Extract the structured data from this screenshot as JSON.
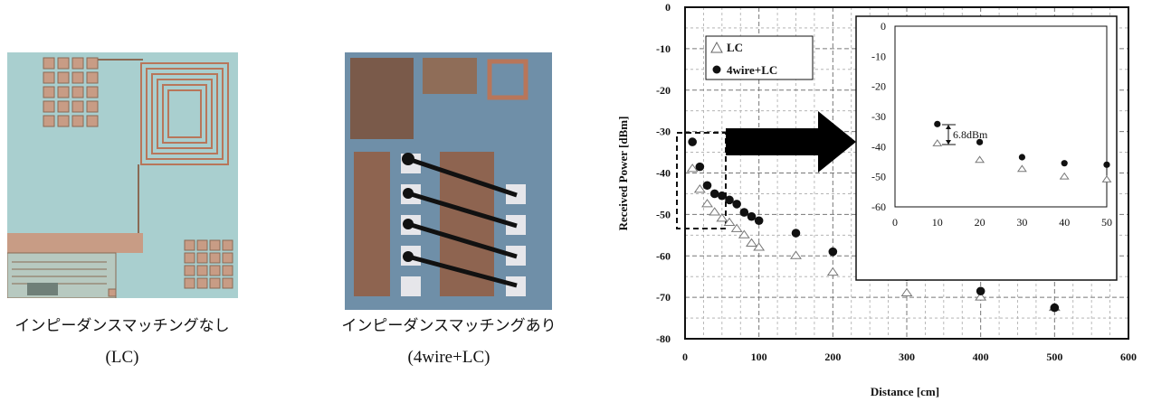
{
  "left_panel": {
    "photo_lc": {
      "caption": "インピーダンスマッチングなし",
      "sub": "(LC)"
    },
    "photo_4wire": {
      "caption": "インピーダンスマッチングあり",
      "sub": "(4wire+LC)"
    }
  },
  "chart_data": [
    {
      "type": "scatter",
      "title": "",
      "xlabel": "Distance [cm]",
      "ylabel": "Received Power [dBm]",
      "xlim": [
        0,
        600
      ],
      "ylim": [
        -80,
        0
      ],
      "xticks": [
        0,
        100,
        200,
        300,
        400,
        500,
        600
      ],
      "yticks": [
        0,
        -10,
        -20,
        -30,
        -40,
        -50,
        -60,
        -70,
        -80
      ],
      "grid": true,
      "legend": "top-left",
      "series": [
        {
          "name": "LC",
          "marker": "open-triangle",
          "x": [
            10,
            20,
            30,
            40,
            50,
            60,
            70,
            80,
            90,
            100,
            150,
            200,
            300,
            400,
            500
          ],
          "y": [
            -39,
            -44,
            -47.5,
            -49.5,
            -51,
            -52,
            -53.5,
            -55,
            -57,
            -58,
            -60,
            -64,
            -69,
            -70,
            -72.5
          ]
        },
        {
          "name": "4wire+LC",
          "marker": "filled-circle",
          "x": [
            10,
            20,
            30,
            40,
            50,
            60,
            70,
            80,
            90,
            100,
            150,
            200,
            300,
            400,
            500
          ],
          "y": [
            -32.5,
            -38.5,
            -43,
            -45,
            -45.5,
            -46.5,
            -47.5,
            -49.5,
            -50.5,
            -51.5,
            -54.5,
            -59,
            -65,
            -68.5,
            -72.5
          ]
        }
      ]
    },
    {
      "type": "scatter",
      "title": "",
      "xlabel": "",
      "ylabel": "",
      "xlim": [
        0,
        50
      ],
      "ylim": [
        -60,
        0
      ],
      "xticks": [
        0,
        10,
        20,
        30,
        40,
        50
      ],
      "yticks": [
        0,
        -10,
        -20,
        -30,
        -40,
        -50,
        -60
      ],
      "grid": false,
      "annotation": "6.8dBm",
      "series": [
        {
          "marker": "open-triangle",
          "x": [
            10,
            20,
            30,
            40,
            50
          ],
          "y": [
            -39,
            -44.5,
            -47.5,
            -50,
            -51
          ]
        },
        {
          "marker": "filled-circle",
          "x": [
            10,
            20,
            30,
            40,
            50
          ],
          "y": [
            -32.5,
            -38.5,
            -43.5,
            -45.5,
            -46
          ]
        }
      ]
    }
  ]
}
